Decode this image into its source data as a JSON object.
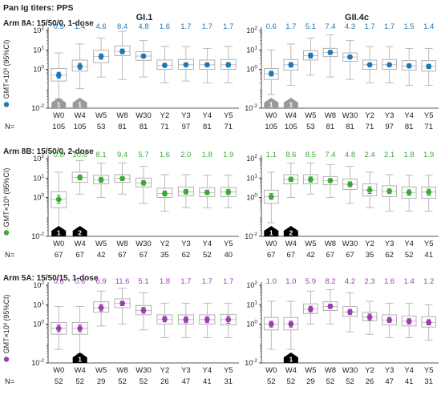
{
  "page_title": "Pan Ig titers: PPS",
  "ylabel": "GMT×10³ (95%CI)",
  "n_label": "N=",
  "columns": [
    "GI.1",
    "GII.4c"
  ],
  "visits": [
    "W0",
    "W4",
    "W5",
    "W8",
    "W30",
    "Y2",
    "Y3",
    "Y4",
    "Y5"
  ],
  "y_ticks": [
    "10-2",
    "100",
    "101",
    "102"
  ],
  "colors": {
    "arm8a": "#1f78b4",
    "arm8b": "#3aaa35",
    "arm5a": "#9b3fb0",
    "box": "#aaaaaa",
    "marker_w0": "#999999",
    "marker_dose": "#000000"
  },
  "chart_data": [
    {
      "type": "box",
      "title": "Arm 8A: 15/50/0, 1-dose",
      "panel": "GI.1",
      "yscale": "log",
      "ylim": [
        0.01,
        100
      ],
      "categories": [
        "W0",
        "W4",
        "W5",
        "W8",
        "W30",
        "Y2",
        "Y3",
        "Y4",
        "Y5"
      ],
      "gmt_labels": [
        "0.5",
        "1.4",
        "4.6",
        "8.4",
        "4.8",
        "1.6",
        "1.7",
        "1.7",
        "1.7"
      ],
      "gmt": [
        0.5,
        1.4,
        4.6,
        8.4,
        4.8,
        1.6,
        1.7,
        1.7,
        1.7
      ],
      "ci": [
        [
          0.35,
          0.7
        ],
        [
          1.0,
          2.0
        ],
        [
          3.3,
          6.2
        ],
        [
          6.3,
          11.0
        ],
        [
          3.8,
          6.0
        ],
        [
          1.3,
          2.0
        ],
        [
          1.4,
          2.1
        ],
        [
          1.4,
          2.1
        ],
        [
          1.3,
          2.2
        ]
      ],
      "box": [
        [
          0.25,
          1.1
        ],
        [
          0.8,
          3.0
        ],
        [
          2.2,
          9.5
        ],
        [
          5.0,
          16.0
        ],
        [
          2.9,
          8.0
        ],
        [
          1.0,
          3.0
        ],
        [
          1.0,
          3.2
        ],
        [
          1.0,
          3.0
        ],
        [
          1.0,
          3.2
        ]
      ],
      "whisker": [
        [
          0.03,
          7
        ],
        [
          0.1,
          20
        ],
        [
          0.4,
          40
        ],
        [
          0.3,
          90
        ],
        [
          0.4,
          30
        ],
        [
          0.2,
          15
        ],
        [
          0.25,
          15
        ],
        [
          0.2,
          12
        ],
        [
          0.2,
          15
        ]
      ],
      "n": [
        "105",
        "105",
        "53",
        "81",
        "81",
        "71",
        "97",
        "81",
        "71"
      ],
      "markers": [
        {
          "visit": "W0",
          "label": "1",
          "kind": "w0"
        },
        {
          "visit": "W4",
          "label": "1",
          "kind": "w0"
        }
      ]
    },
    {
      "type": "box",
      "title": "",
      "panel": "GII.4c",
      "yscale": "log",
      "ylim": [
        0.01,
        100
      ],
      "categories": [
        "W0",
        "W4",
        "W5",
        "W8",
        "W30",
        "Y2",
        "Y3",
        "Y4",
        "Y5"
      ],
      "gmt_labels": [
        "0.6",
        "1.7",
        "5.1",
        "7.4",
        "4.3",
        "1.7",
        "1.7",
        "1.5",
        "1.4"
      ],
      "gmt": [
        0.6,
        1.7,
        5.1,
        7.4,
        4.3,
        1.7,
        1.7,
        1.5,
        1.4
      ],
      "ci": [
        [
          0.45,
          0.8
        ],
        [
          1.3,
          2.2
        ],
        [
          3.8,
          6.8
        ],
        [
          6.0,
          9.2
        ],
        [
          3.5,
          5.3
        ],
        [
          1.4,
          2.1
        ],
        [
          1.4,
          2.1
        ],
        [
          1.2,
          1.9
        ],
        [
          1.1,
          1.8
        ]
      ],
      "box": [
        [
          0.3,
          1.1
        ],
        [
          0.9,
          3.2
        ],
        [
          3.0,
          9.0
        ],
        [
          4.5,
          12.0
        ],
        [
          2.6,
          7.0
        ],
        [
          1.0,
          3.0
        ],
        [
          1.0,
          3.2
        ],
        [
          0.9,
          2.8
        ],
        [
          0.8,
          2.8
        ]
      ],
      "whisker": [
        [
          0.05,
          10
        ],
        [
          0.15,
          20
        ],
        [
          0.5,
          40
        ],
        [
          0.4,
          60
        ],
        [
          0.3,
          30
        ],
        [
          0.2,
          15
        ],
        [
          0.2,
          15
        ],
        [
          0.15,
          12
        ],
        [
          0.15,
          12
        ]
      ],
      "n": [
        "105",
        "105",
        "53",
        "81",
        "81",
        "71",
        "97",
        "81",
        "71"
      ],
      "markers": [
        {
          "visit": "W0",
          "label": "1",
          "kind": "w0"
        },
        {
          "visit": "W4",
          "label": "1",
          "kind": "w0"
        }
      ]
    },
    {
      "type": "box",
      "title": "Arm 8B: 15/50/0, 2-dose",
      "panel": "GI.1",
      "yscale": "log",
      "ylim": [
        0.01,
        100
      ],
      "categories": [
        "W0",
        "W4",
        "W5",
        "W8",
        "W30",
        "Y2",
        "Y3",
        "Y4",
        "Y5"
      ],
      "gmt_labels": [
        "0.8",
        "10.8",
        "8.1",
        "9.4",
        "5.7",
        "1.6",
        "2.0",
        "1.8",
        "1.9"
      ],
      "gmt": [
        0.8,
        10.8,
        8.1,
        9.4,
        5.7,
        1.6,
        2.0,
        1.8,
        1.9
      ],
      "ci": [
        [
          0.5,
          1.3
        ],
        [
          8.0,
          14.5
        ],
        [
          6.0,
          11.0
        ],
        [
          7.5,
          11.8
        ],
        [
          4.3,
          7.5
        ],
        [
          1.2,
          2.2
        ],
        [
          1.5,
          2.6
        ],
        [
          1.4,
          2.4
        ],
        [
          1.4,
          2.6
        ]
      ],
      "box": [
        [
          0.3,
          2.0
        ],
        [
          6.0,
          20.0
        ],
        [
          5.0,
          14.0
        ],
        [
          6.0,
          15.0
        ],
        [
          3.5,
          10.0
        ],
        [
          1.0,
          3.0
        ],
        [
          1.2,
          3.5
        ],
        [
          1.1,
          3.2
        ],
        [
          1.1,
          3.3
        ]
      ],
      "whisker": [
        [
          0.02,
          20
        ],
        [
          1.5,
          80
        ],
        [
          1.0,
          60
        ],
        [
          1.5,
          60
        ],
        [
          0.5,
          40
        ],
        [
          0.2,
          15
        ],
        [
          0.3,
          15
        ],
        [
          0.3,
          14
        ],
        [
          0.3,
          14
        ]
      ],
      "n": [
        "67",
        "67",
        "42",
        "67",
        "67",
        "35",
        "62",
        "52",
        "40"
      ],
      "markers": [
        {
          "visit": "W0",
          "label": "1",
          "kind": "dose"
        },
        {
          "visit": "W4",
          "label": "2",
          "kind": "dose"
        }
      ]
    },
    {
      "type": "box",
      "title": "",
      "panel": "GII.4c",
      "yscale": "log",
      "ylim": [
        0.01,
        100
      ],
      "categories": [
        "W0",
        "W4",
        "W5",
        "W8",
        "W30",
        "Y2",
        "Y3",
        "Y4",
        "Y5"
      ],
      "gmt_labels": [
        "1.1",
        "8.6",
        "8.5",
        "7.4",
        "4.8",
        "2.4",
        "2.1",
        "1.8",
        "1.9"
      ],
      "gmt": [
        1.1,
        8.6,
        8.5,
        7.4,
        4.8,
        2.4,
        2.1,
        1.8,
        1.9
      ],
      "ci": [
        [
          0.8,
          1.6
        ],
        [
          6.6,
          11.2
        ],
        [
          6.2,
          11.5
        ],
        [
          5.9,
          9.3
        ],
        [
          3.6,
          6.4
        ],
        [
          1.6,
          3.6
        ],
        [
          1.6,
          2.8
        ],
        [
          1.3,
          2.5
        ],
        [
          1.3,
          2.7
        ]
      ],
      "box": [
        [
          0.5,
          2.4
        ],
        [
          5.0,
          15.0
        ],
        [
          5.0,
          15.0
        ],
        [
          4.5,
          12.0
        ],
        [
          2.6,
          9.0
        ],
        [
          1.2,
          5.0
        ],
        [
          1.1,
          4.0
        ],
        [
          0.9,
          3.5
        ],
        [
          0.9,
          3.5
        ]
      ],
      "whisker": [
        [
          0.05,
          20
        ],
        [
          1.0,
          60
        ],
        [
          1.5,
          60
        ],
        [
          1.0,
          50
        ],
        [
          0.5,
          40
        ],
        [
          0.3,
          20
        ],
        [
          0.2,
          15
        ],
        [
          0.2,
          14
        ],
        [
          0.2,
          14
        ]
      ],
      "n": [
        "67",
        "67",
        "42",
        "67",
        "67",
        "35",
        "62",
        "52",
        "41"
      ],
      "markers": [
        {
          "visit": "W0",
          "label": "1",
          "kind": "dose"
        },
        {
          "visit": "W4",
          "label": "2",
          "kind": "dose"
        }
      ]
    },
    {
      "type": "box",
      "title": "Arm 5A: 15/50/15, 1-dose",
      "panel": "GI.1",
      "yscale": "log",
      "ylim": [
        0.01,
        100
      ],
      "categories": [
        "W0",
        "W4",
        "W5",
        "W8",
        "W30",
        "Y2",
        "Y3",
        "Y4",
        "Y5"
      ],
      "gmt_labels": [
        "0.6",
        "0.6",
        "6.9",
        "11.6",
        "5.1",
        "1.8",
        "1.7",
        "1.7",
        "1.7"
      ],
      "gmt": [
        0.6,
        0.6,
        6.9,
        11.6,
        5.1,
        1.8,
        1.7,
        1.7,
        1.7
      ],
      "ci": [
        [
          0.4,
          0.9
        ],
        [
          0.4,
          0.9
        ],
        [
          4.7,
          10.2
        ],
        [
          9.0,
          15.0
        ],
        [
          3.6,
          7.2
        ],
        [
          1.3,
          2.5
        ],
        [
          1.2,
          2.4
        ],
        [
          1.2,
          2.4
        ],
        [
          1.1,
          2.6
        ]
      ],
      "box": [
        [
          0.3,
          1.2
        ],
        [
          0.3,
          1.2
        ],
        [
          4.0,
          14.0
        ],
        [
          7.0,
          20.0
        ],
        [
          3.0,
          9.0
        ],
        [
          1.0,
          3.0
        ],
        [
          1.0,
          3.0
        ],
        [
          1.0,
          3.0
        ],
        [
          0.9,
          3.2
        ]
      ],
      "whisker": [
        [
          0.05,
          8
        ],
        [
          0.03,
          8
        ],
        [
          0.8,
          50
        ],
        [
          1.0,
          70
        ],
        [
          0.5,
          40
        ],
        [
          0.2,
          12
        ],
        [
          0.2,
          12
        ],
        [
          0.2,
          12
        ],
        [
          0.2,
          12
        ]
      ],
      "n": [
        "52",
        "52",
        "29",
        "52",
        "52",
        "26",
        "47",
        "41",
        "31"
      ],
      "markers": [
        {
          "visit": "W4",
          "label": "1",
          "kind": "dose"
        }
      ]
    },
    {
      "type": "box",
      "title": "",
      "panel": "GII.4c",
      "yscale": "log",
      "ylim": [
        0.01,
        100
      ],
      "categories": [
        "W0",
        "W4",
        "W5",
        "W8",
        "W30",
        "Y2",
        "Y3",
        "Y4",
        "Y5"
      ],
      "gmt_labels": [
        "1.0",
        "1.0",
        "5.9",
        "8.2",
        "4.2",
        "2.3",
        "1.6",
        "1.4",
        "1.2"
      ],
      "gmt": [
        1.0,
        1.0,
        5.9,
        8.2,
        4.2,
        2.3,
        1.6,
        1.4,
        1.2
      ],
      "ci": [
        [
          0.7,
          1.4
        ],
        [
          0.7,
          1.4
        ],
        [
          4.2,
          8.3
        ],
        [
          6.3,
          10.7
        ],
        [
          3.1,
          5.7
        ],
        [
          1.6,
          3.3
        ],
        [
          1.2,
          2.2
        ],
        [
          1.0,
          1.9
        ],
        [
          0.9,
          1.7
        ]
      ],
      "box": [
        [
          0.5,
          2.2
        ],
        [
          0.5,
          2.2
        ],
        [
          3.5,
          11.0
        ],
        [
          5.0,
          14.0
        ],
        [
          2.5,
          8.0
        ],
        [
          1.5,
          4.0
        ],
        [
          0.9,
          3.0
        ],
        [
          0.8,
          2.6
        ],
        [
          0.7,
          2.4
        ]
      ],
      "whisker": [
        [
          0.05,
          15
        ],
        [
          0.05,
          15
        ],
        [
          1.0,
          50
        ],
        [
          1.0,
          60
        ],
        [
          0.4,
          40
        ],
        [
          0.3,
          15
        ],
        [
          0.2,
          12
        ],
        [
          0.2,
          12
        ],
        [
          0.15,
          10
        ]
      ],
      "n": [
        "52",
        "52",
        "29",
        "52",
        "52",
        "26",
        "47",
        "41",
        "31"
      ],
      "markers": [
        {
          "visit": "W4",
          "label": "1",
          "kind": "dose"
        }
      ]
    }
  ]
}
